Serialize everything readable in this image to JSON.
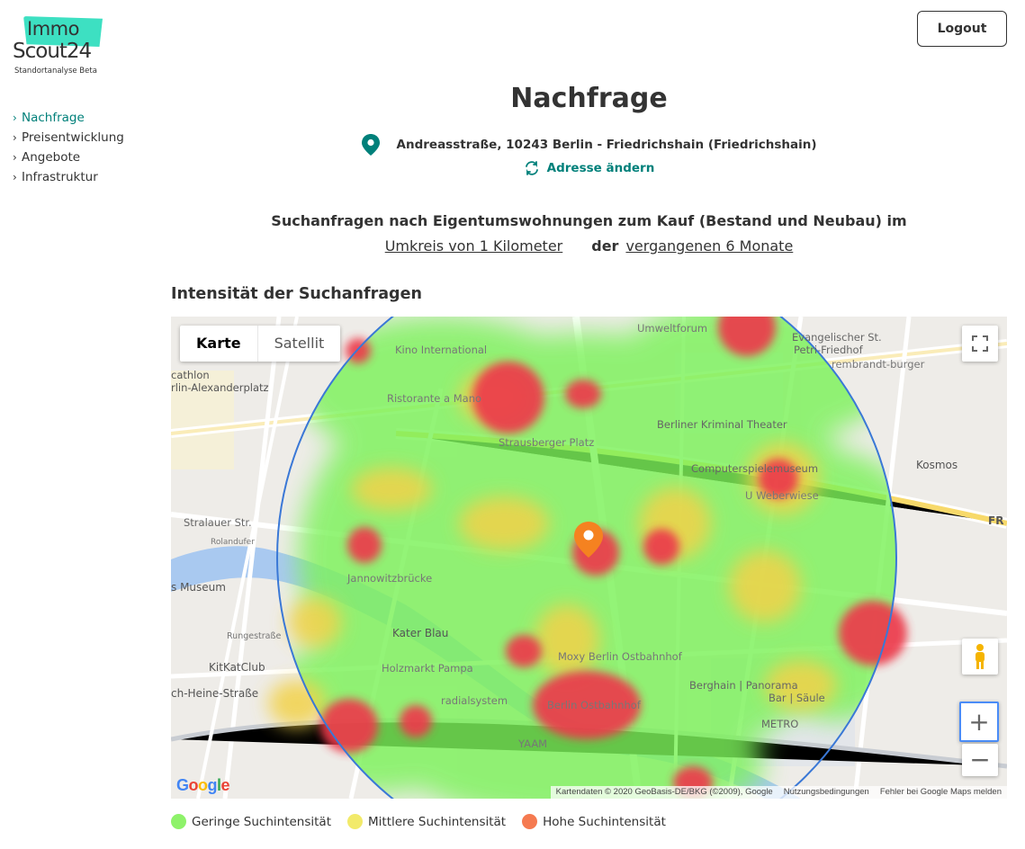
{
  "logo": {
    "word1": "Immo",
    "word2": "Scout24",
    "subtitle": "Standortanalyse Beta"
  },
  "nav": [
    {
      "label": "Nachfrage",
      "active": true
    },
    {
      "label": "Preisentwicklung",
      "active": false
    },
    {
      "label": "Angebote",
      "active": false
    },
    {
      "label": "Infrastruktur",
      "active": false
    }
  ],
  "header": {
    "logout_label": "Logout",
    "title": "Nachfrage",
    "address": "Andreasstraße, 10243 Berlin - Friedrichshain (Friedrichshain)",
    "change_address": "Adresse ändern"
  },
  "query": {
    "line1": "Suchanfragen nach Eigentumswohnungen zum Kauf (Bestand und Neubau) im",
    "radius_link": "Umkreis von 1 Kilometer",
    "connector": "der",
    "period_link": "vergangenen 6 Monate"
  },
  "section_title": "Intensität der Suchanfragen",
  "map": {
    "type_buttons": {
      "map": "Karte",
      "satellite": "Satellit"
    },
    "google_label": "Google",
    "attribution": [
      "Kartendaten © 2020 GeoBasis-DE/BKG (©2009), Google",
      "Nutzungsbedingungen",
      "Fehler bei Google Maps melden"
    ],
    "labels": [
      "Kino International",
      "Umweltforum",
      "Evangelischer St.",
      "Petri-Friedhof",
      "rembrandt-burger",
      "cathlon",
      "rlin-Alexanderplatz",
      "Ristorante a Mano",
      "Berliner Kriminal Theater",
      "Strausberger Platz",
      "Computerspielemuseum",
      "Kosmos",
      "U Weberwiese",
      "Stralauer Str.",
      "Rolandufer",
      "Jannowitzbrücke",
      "s Museum",
      "Kater Blau",
      "Rungestraße",
      "KitKatClub",
      "Holzmarkt Pampa",
      "Moxy Berlin Ostbahnhof",
      "ch-Heine-Straße",
      "radialsystem",
      "Berlin Ostbahnhof",
      "YAAM",
      "Berghain | Panorama",
      "Bar | Säule",
      "METRO",
      "FR"
    ],
    "colors": {
      "low": "#7cf25a",
      "mid": "#f2e35a",
      "high": "#f05560",
      "radius_circle": "#3a78d6",
      "marker": "#f58220"
    }
  },
  "legend": [
    {
      "label": "Geringe Suchintensität",
      "color": "#8ef26a"
    },
    {
      "label": "Mittlere Suchintensität",
      "color": "#f2ea6a"
    },
    {
      "label": "Hohe Suchintensität",
      "color": "#f57a50"
    }
  ]
}
